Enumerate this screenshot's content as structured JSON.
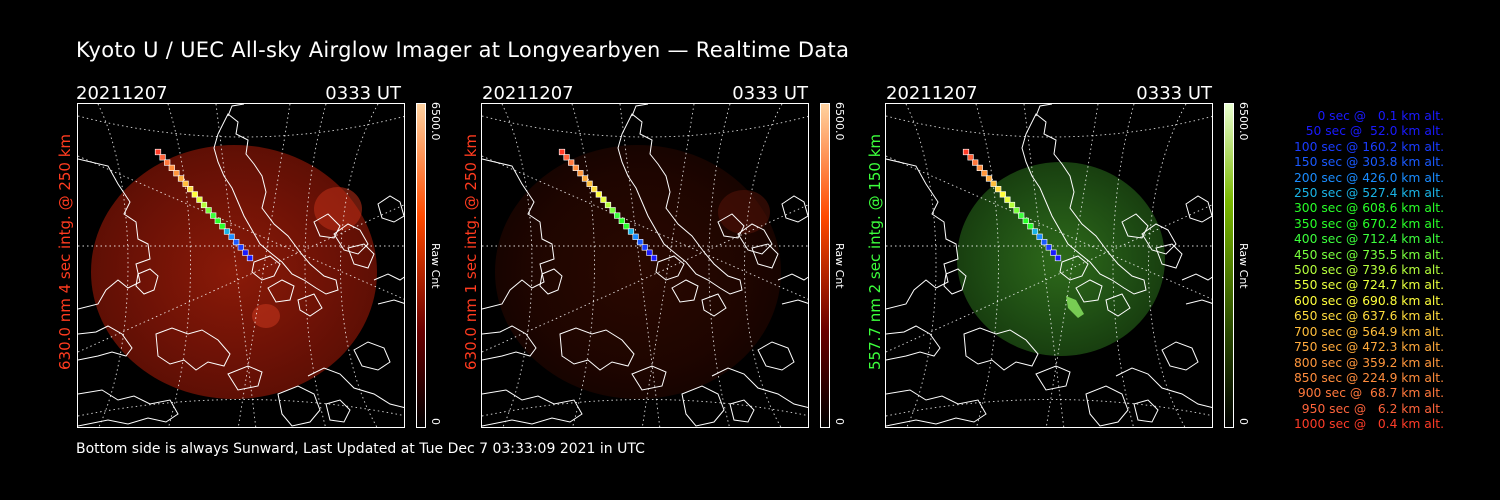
{
  "title": "Kyoto U / UEC All-sky Airglow Imager at Longyearbyen — Realtime Data",
  "footer": "Bottom side is always Sunward, Last Updated at Tue Dec  7 03:33:09 2021 in UTC",
  "panels": [
    {
      "date": "20211207",
      "time": "0333 UT",
      "side_label": "630.0 nm 4 sec intg. @ 250 km",
      "label_color": "#ff3b1f",
      "colorbar_max": "6500.0",
      "colorbar_min": "0",
      "colorbar_label": "Raw Cnt",
      "emission_color": "red",
      "brightness": "bright"
    },
    {
      "date": "20211207",
      "time": "0333 UT",
      "side_label": "630.0 nm 1 sec intg. @ 250 km",
      "label_color": "#ff3b1f",
      "colorbar_max": "6500.0",
      "colorbar_min": "0",
      "colorbar_label": "Raw Cnt",
      "emission_color": "red",
      "brightness": "dim"
    },
    {
      "date": "20211207",
      "time": "0333 UT",
      "side_label": "557.7 nm 2 sec intg. @ 150 km",
      "label_color": "#3cff3c",
      "colorbar_max": "6500.0",
      "colorbar_min": "0",
      "colorbar_label": "Raw Cnt",
      "emission_color": "green",
      "brightness": "bright"
    }
  ],
  "legend": [
    {
      "text": "0 sec @   0.1 km alt.",
      "color": "#1a1aff"
    },
    {
      "text": "50 sec @  52.0 km alt.",
      "color": "#1a1aff"
    },
    {
      "text": "100 sec @ 160.2 km alt.",
      "color": "#1a3cff"
    },
    {
      "text": "150 sec @ 303.8 km alt.",
      "color": "#1a5aff"
    },
    {
      "text": "200 sec @ 426.0 km alt.",
      "color": "#1a8cff"
    },
    {
      "text": "250 sec @ 527.4 km alt.",
      "color": "#1ab4e6"
    },
    {
      "text": "300 sec @ 608.6 km alt.",
      "color": "#28ff28"
    },
    {
      "text": "350 sec @ 670.2 km alt.",
      "color": "#28ff28"
    },
    {
      "text": "400 sec @ 712.4 km alt.",
      "color": "#3cff3c"
    },
    {
      "text": "450 sec @ 735.5 km alt.",
      "color": "#78ff3c"
    },
    {
      "text": "500 sec @ 739.6 km alt.",
      "color": "#b4ff3c"
    },
    {
      "text": "550 sec @ 724.7 km alt.",
      "color": "#e6ff3c"
    },
    {
      "text": "600 sec @ 690.8 km alt.",
      "color": "#ffff3c"
    },
    {
      "text": "650 sec @ 637.6 km alt.",
      "color": "#ffdc3c"
    },
    {
      "text": "700 sec @ 564.9 km alt.",
      "color": "#ffbe3c"
    },
    {
      "text": "750 sec @ 472.3 km alt.",
      "color": "#ffaa3c"
    },
    {
      "text": "800 sec @ 359.2 km alt.",
      "color": "#ff963c"
    },
    {
      "text": "850 sec @ 224.9 km alt.",
      "color": "#ff8c3c"
    },
    {
      "text": "900 sec @  68.7 km alt.",
      "color": "#ff783c"
    },
    {
      "text": "950 sec @   6.2 km alt.",
      "color": "#ff643c"
    },
    {
      "text": "1000 sec @   0.4 km alt.",
      "color": "#ff3c28"
    }
  ]
}
